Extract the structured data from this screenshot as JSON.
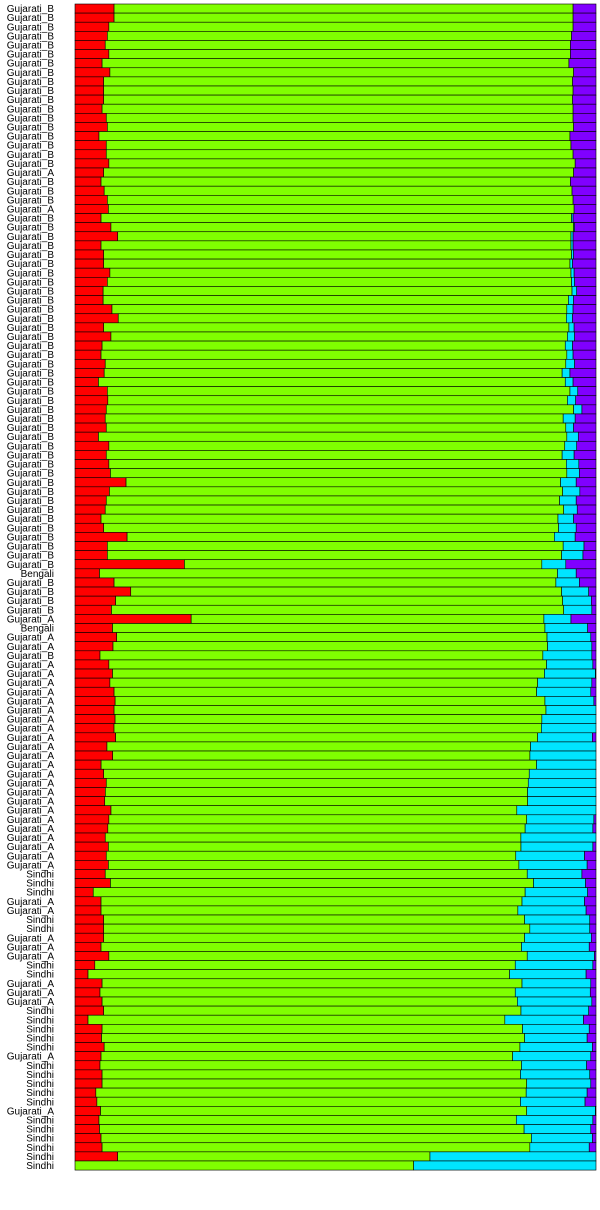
{
  "chart_data": {
    "type": "bar",
    "orientation": "horizontal",
    "stacked": true,
    "normalized": true,
    "colors": [
      "#ff0000",
      "#80ff00",
      "#00e5ff",
      "#8000ff"
    ],
    "components": 4,
    "legend": "none",
    "grid": false,
    "categories": [
      "Gujarati_B",
      "Gujarati_B",
      "Gujarati_B",
      "Gujarati_B",
      "Gujarati_B",
      "Gujarati_B",
      "Gujarati_B",
      "Gujarati_B",
      "Gujarati_B",
      "Gujarati_B",
      "Gujarati_B",
      "Gujarati_B",
      "Gujarati_B",
      "Gujarati_B",
      "Gujarati_B",
      "Gujarati_B",
      "Gujarati_B",
      "Gujarati_B",
      "Gujarati_A",
      "Gujarati_B",
      "Gujarati_B",
      "Gujarati_B",
      "Gujarati_A",
      "Gujarati_B",
      "Gujarati_B",
      "Gujarati_B",
      "Gujarati_B",
      "Gujarati_B",
      "Gujarati_B",
      "Gujarati_B",
      "Gujarati_B",
      "Gujarati_B",
      "Gujarati_B",
      "Gujarati_B",
      "Gujarati_B",
      "Gujarati_B",
      "Gujarati_B",
      "Gujarati_B",
      "Gujarati_B",
      "Gujarati_B",
      "Gujarati_B",
      "Gujarati_B",
      "Gujarati_B",
      "Gujarati_B",
      "Gujarati_B",
      "Gujarati_B",
      "Gujarati_B",
      "Gujarati_B",
      "Gujarati_B",
      "Gujarati_B",
      "Gujarati_B",
      "Gujarati_B",
      "Gujarati_B",
      "Gujarati_B",
      "Gujarati_B",
      "Gujarati_B",
      "Gujarati_B",
      "Gujarati_B",
      "Gujarati_B",
      "Gujarati_B",
      "Gujarati_B",
      "Gujarati_B",
      "Bengali",
      "Gujarati_B",
      "Gujarati_B",
      "Gujarati_B",
      "Gujarati_B",
      "Gujarati_A",
      "Bengali",
      "Gujarati_A",
      "Gujarati_A",
      "Gujarati_B",
      "Gujarati_A",
      "Gujarati_A",
      "Gujarati_A",
      "Gujarati_A",
      "Gujarati_A",
      "Gujarati_A",
      "Gujarati_A",
      "Gujarati_A",
      "Gujarati_A",
      "Gujarati_A",
      "Gujarati_A",
      "Gujarati_A",
      "Gujarati_A",
      "Gujarati_A",
      "Gujarati_A",
      "Gujarati_A",
      "Gujarati_A",
      "Gujarati_A",
      "Gujarati_A",
      "Gujarati_A",
      "Gujarati_A",
      "Gujarati_A",
      "Gujarati_A",
      "Sindhi",
      "Sindhi",
      "Sindhi",
      "Gujarati_A",
      "Gujarati_A",
      "Sindhi",
      "Sindhi",
      "Gujarati_A",
      "Gujarati_A",
      "Gujarati_A",
      "Sindhi",
      "Sindhi",
      "Gujarati_A",
      "Gujarati_A",
      "Gujarati_A",
      "Sindhi",
      "Sindhi",
      "Sindhi",
      "Sindhi",
      "Sindhi",
      "Gujarati_A",
      "Sindhi",
      "Sindhi",
      "Sindhi",
      "Sindhi",
      "Sindhi",
      "Gujarati_A",
      "Sindhi",
      "Sindhi",
      "Sindhi",
      "Sindhi",
      "Sindhi",
      "Sindhi",
      "Sindhi",
      "Sindhi",
      "Sindhi"
    ],
    "values": [
      [
        0.075,
        0.881,
        0.0,
        0.044
      ],
      [
        0.075,
        0.881,
        0.0,
        0.044
      ],
      [
        0.065,
        0.891,
        0.0,
        0.044
      ],
      [
        0.062,
        0.891,
        0.0,
        0.047
      ],
      [
        0.058,
        0.893,
        0.0,
        0.049
      ],
      [
        0.065,
        0.886,
        0.0,
        0.049
      ],
      [
        0.052,
        0.896,
        0.0,
        0.052
      ],
      [
        0.067,
        0.89,
        0.0,
        0.043
      ],
      [
        0.055,
        0.9,
        0.0,
        0.045
      ],
      [
        0.055,
        0.901,
        0.0,
        0.044
      ],
      [
        0.055,
        0.9,
        0.0,
        0.045
      ],
      [
        0.052,
        0.904,
        0.0,
        0.044
      ],
      [
        0.06,
        0.896,
        0.0,
        0.044
      ],
      [
        0.062,
        0.895,
        0.0,
        0.043
      ],
      [
        0.046,
        0.904,
        0.0,
        0.05
      ],
      [
        0.06,
        0.892,
        0.0,
        0.048
      ],
      [
        0.06,
        0.896,
        0.0,
        0.044
      ],
      [
        0.065,
        0.895,
        0.0,
        0.04
      ],
      [
        0.055,
        0.902,
        0.0,
        0.043
      ],
      [
        0.05,
        0.901,
        0.0,
        0.049
      ],
      [
        0.056,
        0.898,
        0.0,
        0.046
      ],
      [
        0.062,
        0.894,
        0.0,
        0.044
      ],
      [
        0.064,
        0.894,
        0.0,
        0.042
      ],
      [
        0.05,
        0.903,
        0.003,
        0.044
      ],
      [
        0.069,
        0.888,
        0.002,
        0.041
      ],
      [
        0.082,
        0.87,
        0.004,
        0.044
      ],
      [
        0.05,
        0.902,
        0.004,
        0.044
      ],
      [
        0.055,
        0.898,
        0.004,
        0.043
      ],
      [
        0.055,
        0.895,
        0.005,
        0.045
      ],
      [
        0.067,
        0.885,
        0.006,
        0.042
      ],
      [
        0.062,
        0.891,
        0.006,
        0.041
      ],
      [
        0.054,
        0.9,
        0.009,
        0.037
      ],
      [
        0.054,
        0.893,
        0.01,
        0.043
      ],
      [
        0.071,
        0.873,
        0.012,
        0.044
      ],
      [
        0.083,
        0.86,
        0.012,
        0.045
      ],
      [
        0.055,
        0.893,
        0.01,
        0.042
      ],
      [
        0.069,
        0.876,
        0.014,
        0.041
      ],
      [
        0.052,
        0.889,
        0.014,
        0.045
      ],
      [
        0.05,
        0.894,
        0.012,
        0.044
      ],
      [
        0.058,
        0.884,
        0.017,
        0.041
      ],
      [
        0.056,
        0.879,
        0.015,
        0.05
      ],
      [
        0.045,
        0.896,
        0.015,
        0.044
      ],
      [
        0.062,
        0.888,
        0.015,
        0.035
      ],
      [
        0.063,
        0.882,
        0.016,
        0.039
      ],
      [
        0.06,
        0.897,
        0.016,
        0.027
      ],
      [
        0.058,
        0.879,
        0.023,
        0.04
      ],
      [
        0.06,
        0.882,
        0.015,
        0.043
      ],
      [
        0.045,
        0.899,
        0.022,
        0.034
      ],
      [
        0.065,
        0.875,
        0.023,
        0.037
      ],
      [
        0.06,
        0.875,
        0.023,
        0.042
      ],
      [
        0.065,
        0.878,
        0.024,
        0.033
      ],
      [
        0.068,
        0.876,
        0.024,
        0.032
      ],
      [
        0.098,
        0.834,
        0.03,
        0.038
      ],
      [
        0.066,
        0.87,
        0.033,
        0.031
      ],
      [
        0.06,
        0.87,
        0.032,
        0.038
      ],
      [
        0.058,
        0.88,
        0.026,
        0.036
      ],
      [
        0.05,
        0.877,
        0.03,
        0.043
      ],
      [
        0.055,
        0.873,
        0.034,
        0.038
      ],
      [
        0.1,
        0.82,
        0.04,
        0.04
      ],
      [
        0.062,
        0.875,
        0.04,
        0.023
      ],
      [
        0.062,
        0.872,
        0.041,
        0.025
      ],
      [
        0.21,
        0.686,
        0.046,
        0.058
      ],
      [
        0.047,
        0.879,
        0.036,
        0.038
      ],
      [
        0.075,
        0.848,
        0.045,
        0.032
      ],
      [
        0.107,
        0.827,
        0.052,
        0.014
      ],
      [
        0.078,
        0.858,
        0.055,
        0.009
      ],
      [
        0.07,
        0.868,
        0.054,
        0.008
      ],
      [
        0.223,
        0.677,
        0.052,
        0.048
      ],
      [
        0.072,
        0.83,
        0.082,
        0.016
      ],
      [
        0.08,
        0.826,
        0.084,
        0.01
      ],
      [
        0.073,
        0.834,
        0.085,
        0.008
      ],
      [
        0.048,
        0.85,
        0.094,
        0.008
      ],
      [
        0.065,
        0.84,
        0.089,
        0.006
      ],
      [
        0.072,
        0.829,
        0.098,
        0.001
      ],
      [
        0.067,
        0.821,
        0.104,
        0.008
      ],
      [
        0.075,
        0.811,
        0.104,
        0.01
      ],
      [
        0.077,
        0.825,
        0.094,
        0.004
      ],
      [
        0.075,
        0.829,
        0.096,
        0
      ],
      [
        0.077,
        0.82,
        0.104,
        0
      ],
      [
        0.075,
        0.821,
        0.105,
        0
      ],
      [
        0.078,
        0.81,
        0.105,
        0.007
      ],
      [
        0.062,
        0.822,
        0.127,
        0
      ],
      [
        0.073,
        0.808,
        0.128,
        0
      ],
      [
        0.05,
        0.834,
        0.114,
        0
      ],
      [
        0.055,
        0.816,
        0.128,
        0
      ],
      [
        0.06,
        0.81,
        0.13,
        0
      ],
      [
        0.058,
        0.808,
        0.131,
        0
      ],
      [
        0.057,
        0.811,
        0.131,
        0
      ],
      [
        0.07,
        0.789,
        0.154,
        0
      ],
      [
        0.065,
        0.802,
        0.129,
        0.004
      ],
      [
        0.063,
        0.801,
        0.13,
        0.006
      ],
      [
        0.058,
        0.797,
        0.144,
        0
      ],
      [
        0.064,
        0.792,
        0.138,
        0.006
      ],
      [
        0.06,
        0.786,
        0.132,
        0.022
      ],
      [
        0.064,
        0.788,
        0.131,
        0.017
      ],
      [
        0.058,
        0.81,
        0.105,
        0.027
      ],
      [
        0.068,
        0.812,
        0.1,
        0.02
      ],
      [
        0.035,
        0.829,
        0.12,
        0.016
      ],
      [
        0.05,
        0.808,
        0.12,
        0.022
      ],
      [
        0.05,
        0.8,
        0.131,
        0.019
      ],
      [
        0.055,
        0.808,
        0.125,
        0.012
      ],
      [
        0.055,
        0.818,
        0.115,
        0.012
      ],
      [
        0.055,
        0.808,
        0.128,
        0.009
      ],
      [
        0.05,
        0.807,
        0.13,
        0.013
      ],
      [
        0.065,
        0.803,
        0.129,
        0.003
      ],
      [
        0.038,
        0.807,
        0.149,
        0.006
      ],
      [
        0.025,
        0.809,
        0.147,
        0.019
      ],
      [
        0.052,
        0.806,
        0.132,
        0.01
      ],
      [
        0.048,
        0.797,
        0.144,
        0.011
      ],
      [
        0.052,
        0.797,
        0.143,
        0.008
      ],
      [
        0.055,
        0.801,
        0.13,
        0.014
      ],
      [
        0.025,
        0.8,
        0.151,
        0.024
      ],
      [
        0.052,
        0.807,
        0.128,
        0.013
      ],
      [
        0.051,
        0.812,
        0.12,
        0.017
      ],
      [
        0.056,
        0.798,
        0.139,
        0.007
      ],
      [
        0.05,
        0.79,
        0.15,
        0.01
      ],
      [
        0.048,
        0.809,
        0.125,
        0.018
      ],
      [
        0.052,
        0.803,
        0.133,
        0.012
      ],
      [
        0.052,
        0.815,
        0.123,
        0.01
      ],
      [
        0.04,
        0.826,
        0.117,
        0.017
      ],
      [
        0.042,
        0.813,
        0.124,
        0.021
      ],
      [
        0.049,
        0.818,
        0.132,
        0.001
      ],
      [
        0.046,
        0.801,
        0.147,
        0.006
      ],
      [
        0.047,
        0.815,
        0.128,
        0.01
      ],
      [
        0.05,
        0.826,
        0.117,
        0.007
      ],
      [
        0.052,
        0.821,
        0.114,
        0.013
      ],
      [
        0.082,
        0.6,
        0.319,
        0
      ],
      [
        0.0,
        0.65,
        0.35,
        0
      ]
    ]
  }
}
